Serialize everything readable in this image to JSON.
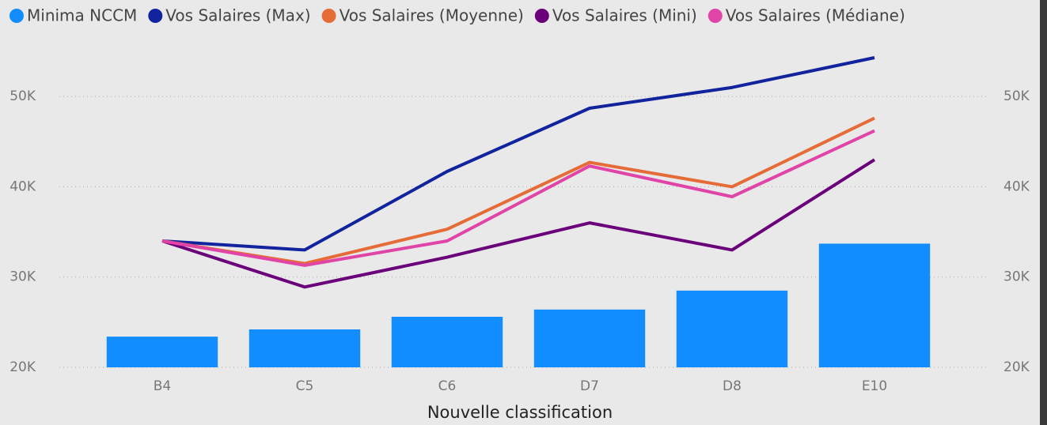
{
  "chart_data": {
    "type": "combo",
    "x_label": "Nouvelle classification",
    "categories": [
      "B4",
      "C5",
      "C6",
      "D7",
      "D8",
      "E10"
    ],
    "series": [
      {
        "name": "Minima NCCM",
        "type": "bar",
        "axis": "y2",
        "color": "#118dff",
        "values": [
          23400,
          24200,
          25600,
          26400,
          28500,
          33700
        ]
      },
      {
        "name": "Vos Salaires (Max)",
        "type": "line",
        "color": "#12239e",
        "values": [
          34000,
          33000,
          41700,
          48700,
          51000,
          54300
        ]
      },
      {
        "name": "Vos Salaires (Moyenne)",
        "type": "line",
        "color": "#e66c37",
        "values": [
          34000,
          31500,
          35300,
          42700,
          40000,
          47600
        ]
      },
      {
        "name": "Vos Salaires (Mini)",
        "type": "line",
        "color": "#6b007b",
        "values": [
          34000,
          28900,
          32200,
          36000,
          33000,
          43000
        ]
      },
      {
        "name": "Vos Salaires (Médiane)",
        "type": "line",
        "color": "#e044a7",
        "values": [
          34000,
          31300,
          34000,
          42300,
          38900,
          46200
        ]
      }
    ],
    "ylim": [
      20000,
      55000
    ],
    "yticks": [
      {
        "value": 20000,
        "label": "20K"
      },
      {
        "value": 30000,
        "label": "30K"
      },
      {
        "value": 40000,
        "label": "40K"
      },
      {
        "value": 50000,
        "label": "50K"
      }
    ],
    "y2lim": [
      20000,
      55000
    ],
    "y2ticks": [
      {
        "value": 20000,
        "label": "20K"
      },
      {
        "value": 30000,
        "label": "30K"
      },
      {
        "value": 40000,
        "label": "40K"
      },
      {
        "value": 50000,
        "label": "50K"
      }
    ],
    "grid": true,
    "legend": "top-left"
  }
}
